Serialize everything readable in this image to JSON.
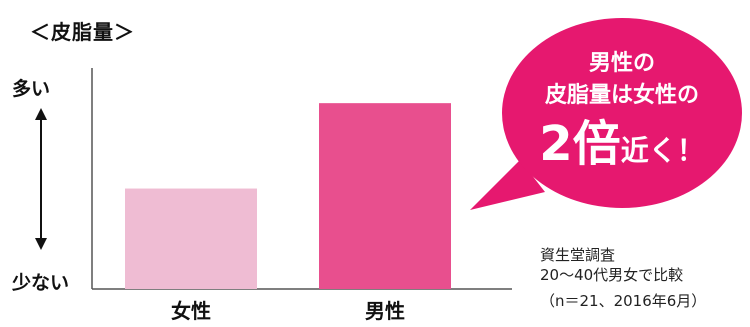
{
  "chart_data": {
    "type": "bar",
    "title": "＜皮脂量＞",
    "categories": [
      "女性",
      "男性"
    ],
    "values": [
      1,
      1.85
    ],
    "ylim": [
      0,
      2.2
    ],
    "y_axis_top_label": "多い",
    "y_axis_bottom_label": "少ない",
    "grid": false,
    "colors": {
      "女性": "#efbcd3",
      "男性": "#e84f8e",
      "callout": "#e6186f"
    }
  },
  "callout": {
    "line1": "男性の",
    "line2": "皮脂量は女性の",
    "line3_big": "2倍",
    "line3_rest": "近く！"
  },
  "source": {
    "line1": "資生堂調査",
    "line2": "20〜40代男女で比較",
    "line3": "（n＝21、2016年6月）"
  }
}
